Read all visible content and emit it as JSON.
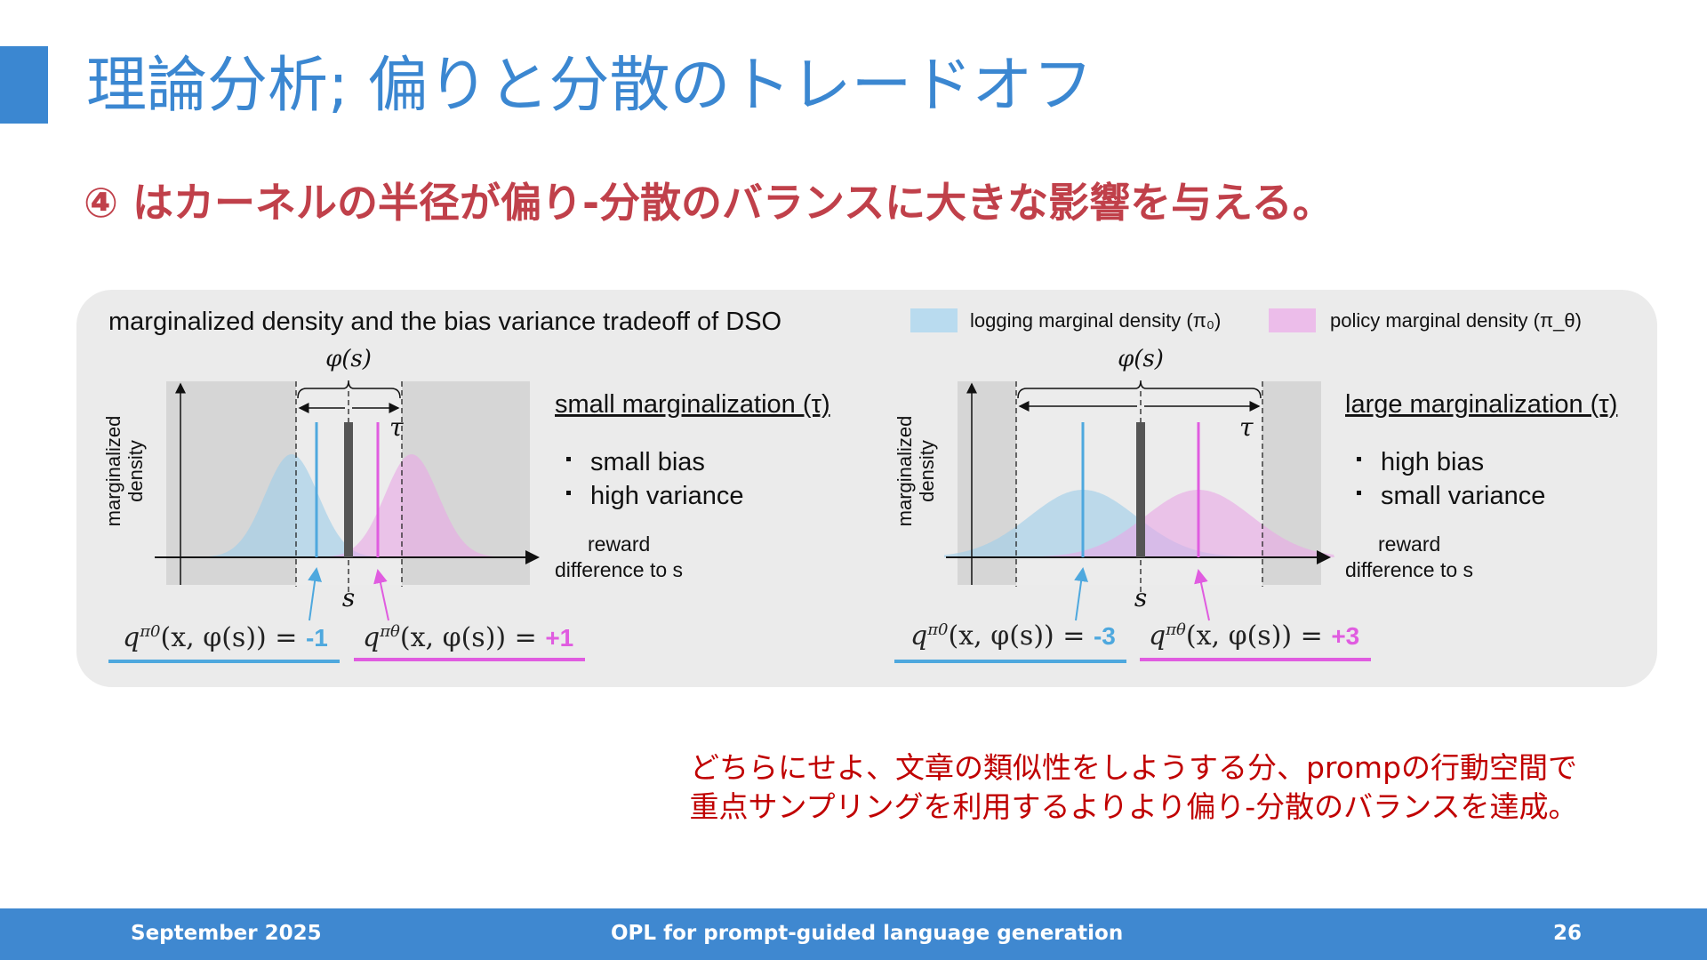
{
  "header": {
    "title": "理論分析; 偏りと分散のトレードオフ",
    "subtitle": "④ はカーネルの半径が偏り-分散のバランスに大きな影響を与える。"
  },
  "figure": {
    "title": "marginalized density and the bias variance tradeoff of DSO",
    "legend": [
      {
        "label": "logging marginal density (π₀)",
        "color": "#b9dbef"
      },
      {
        "label": "policy marginal density (π_θ)",
        "color": "#ecbdea"
      }
    ],
    "ylabel_line1": "marginalized",
    "ylabel_line2": "density",
    "xlabel_line1": "reward",
    "xlabel_line2": "difference to s",
    "phi_label": "φ(s)",
    "tau_label": "τ",
    "s_label": "s",
    "panels": [
      {
        "heading": "small marginalization (τ)",
        "bullets": [
          "small bias",
          "high variance"
        ],
        "logging_value": "-1",
        "policy_value": "+1"
      },
      {
        "heading": "large marginalization (τ)",
        "bullets": [
          "high bias",
          "small variance"
        ],
        "logging_value": "-3",
        "policy_value": "+3"
      }
    ],
    "equation": {
      "q": "q",
      "logging_sup": "π0",
      "policy_sup": "πθ",
      "args": "(x, φ(s)) = "
    },
    "colors": {
      "logging": "#4ea8de",
      "policy": "#e05ce0",
      "center": "#555555"
    }
  },
  "note": {
    "line1": "どちらにせよ、文章の類似性をしようする分、prompの行動空間で",
    "line2": "重点サンプリングを利用するよりより偏り-分散のバランスを達成。"
  },
  "footer": {
    "date": "September 2025",
    "title": "OPL for prompt-guided language generation",
    "page": "26"
  }
}
